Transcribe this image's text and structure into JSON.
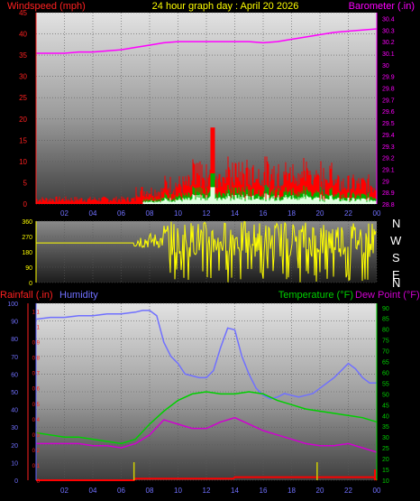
{
  "header": {
    "left_label": "Windspeed (mph)",
    "center_label": "24 hour graph day : April 20 2026",
    "right_label": "Barometer (.in)"
  },
  "colors": {
    "windspeed": "#ff0000",
    "gust": "#ff0000",
    "avg_wind": "#00c000",
    "barometer": "#ff00ff",
    "direction": "#ffff00",
    "rainfall": "#ff0000",
    "humidity": "#7070ff",
    "temperature": "#00d000",
    "dew_point": "#d000d0",
    "axis_left_top": "#ff2020",
    "axis_right_top": "#ff00ff",
    "axis_left_bottom": "#6060ff",
    "axis_right_bottom": "#00d000"
  },
  "direction_letters": [
    "N",
    "W",
    "S",
    "E",
    "N"
  ],
  "chart_data": [
    {
      "type": "line",
      "name": "wind-barometer",
      "x_ticks": [
        "02",
        "04",
        "06",
        "08",
        "10",
        "12",
        "14",
        "16",
        "18",
        "20",
        "22",
        "00"
      ],
      "y_left_ticks": [
        "0",
        "5",
        "10",
        "15",
        "20",
        "25",
        "30",
        "35",
        "40",
        "45"
      ],
      "y_right_ticks": [
        "28.8",
        "28.9",
        "29",
        "29.1",
        "29.2",
        "29.3",
        "29.4",
        "29.5",
        "29.6",
        "29.7",
        "29.8",
        "29.9",
        "30",
        "30.1",
        "30.2",
        "30.3",
        "30.4"
      ],
      "ylim_left": [
        0,
        45
      ],
      "ylim_right": [
        28.8,
        30.45
      ],
      "xlim": [
        0,
        24
      ],
      "series": [
        {
          "axis": "right",
          "x": [
            0,
            1,
            2,
            3,
            4,
            5,
            6,
            7,
            8,
            9,
            10,
            11,
            12,
            13,
            14,
            15,
            16,
            17,
            18,
            19,
            20,
            21,
            22,
            23,
            24
          ],
          "values": [
            30.1,
            30.1,
            30.1,
            30.11,
            30.11,
            30.12,
            30.13,
            30.15,
            30.17,
            30.19,
            30.2,
            30.2,
            30.2,
            30.2,
            30.2,
            30.2,
            30.19,
            30.2,
            30.22,
            30.24,
            30.26,
            30.28,
            30.29,
            30.3,
            30.31
          ]
        }
      ]
    },
    {
      "type": "scatter",
      "name": "wind-direction",
      "y_ticks": [
        "0",
        "90",
        "180",
        "270",
        "360"
      ],
      "ylim": [
        0,
        360
      ],
      "xlim": [
        0,
        24
      ]
    },
    {
      "type": "line",
      "name": "rain-humidity-temp",
      "left_label_1": "Rainfall (.in)",
      "left_label_2": "Humidity",
      "right_label_1": "Temperature (°F)",
      "right_label_2": "Dew Point (°F)",
      "x_ticks": [
        "02",
        "04",
        "06",
        "08",
        "10",
        "12",
        "14",
        "16",
        "18",
        "20",
        "22",
        "00"
      ],
      "y_hum_ticks": [
        "0",
        "10",
        "20",
        "30",
        "40",
        "50",
        "60",
        "70",
        "80",
        "90",
        "100"
      ],
      "y_rain_ticks": [
        "0",
        "0.1",
        "0.2",
        "0.3",
        "0.4",
        "0.5",
        "0.6",
        "0.7",
        "0.8",
        "0.9",
        "1",
        "1.1"
      ],
      "y_temp_ticks": [
        "10",
        "15",
        "20",
        "25",
        "30",
        "35",
        "40",
        "45",
        "50",
        "55",
        "60",
        "65",
        "70",
        "75",
        "80",
        "85",
        "90"
      ],
      "ylim_hum": [
        0,
        100
      ],
      "ylim_rain": [
        0,
        1.15
      ],
      "ylim_temp": [
        10,
        92
      ],
      "xlim": [
        0,
        24
      ],
      "series": [
        {
          "axis": "hum",
          "x": [
            0,
            1,
            2,
            3,
            4,
            5,
            6,
            7,
            7.5,
            8,
            8.5,
            9,
            9.5,
            10,
            10.5,
            11,
            11.5,
            12,
            12.5,
            13,
            13.5,
            14,
            14.5,
            15,
            15.5,
            16,
            16.5,
            17,
            17.5,
            18,
            18.5,
            19,
            19.5,
            20,
            20.5,
            21,
            21.5,
            22,
            22.5,
            23,
            23.5,
            24
          ],
          "values": [
            91,
            92,
            92,
            93,
            93,
            94,
            94,
            95,
            96,
            96,
            93,
            78,
            70,
            66,
            60,
            59,
            58,
            58,
            62,
            75,
            86,
            85,
            70,
            60,
            52,
            48,
            46,
            47,
            49,
            48,
            47,
            48,
            49,
            52,
            55,
            58,
            62,
            66,
            63,
            58,
            55,
            55
          ]
        },
        {
          "axis": "temp",
          "x": [
            0,
            1,
            2,
            3,
            4,
            5,
            6,
            7,
            8,
            9,
            10,
            11,
            12,
            13,
            14,
            15,
            16,
            17,
            18,
            19,
            20,
            21,
            22,
            23,
            24
          ],
          "values": [
            32,
            31,
            30,
            30,
            29,
            28,
            27,
            29,
            36,
            42,
            47,
            50,
            51,
            50,
            50,
            51,
            50,
            47,
            45,
            43,
            42,
            41,
            40,
            39,
            37
          ]
        },
        {
          "axis": "temp",
          "x": [
            0,
            1,
            2,
            3,
            4,
            5,
            6,
            7,
            8,
            9,
            10,
            11,
            12,
            13,
            14,
            15,
            16,
            17,
            18,
            19,
            20,
            21,
            22,
            23,
            24
          ],
          "values": [
            27,
            27,
            27,
            27,
            26,
            26,
            25,
            27,
            31,
            38,
            36,
            34,
            34,
            37,
            39,
            36,
            33,
            31,
            29,
            27,
            26,
            26,
            27,
            25,
            23
          ]
        },
        {
          "axis": "rain",
          "x": [
            0,
            6.9,
            7,
            12,
            13,
            13.9,
            14,
            20,
            22,
            23.8,
            24
          ],
          "values": [
            0,
            0,
            0.01,
            0.01,
            0.01,
            0.01,
            0.02,
            0.02,
            0.02,
            0.02,
            0
          ]
        }
      ]
    }
  ]
}
